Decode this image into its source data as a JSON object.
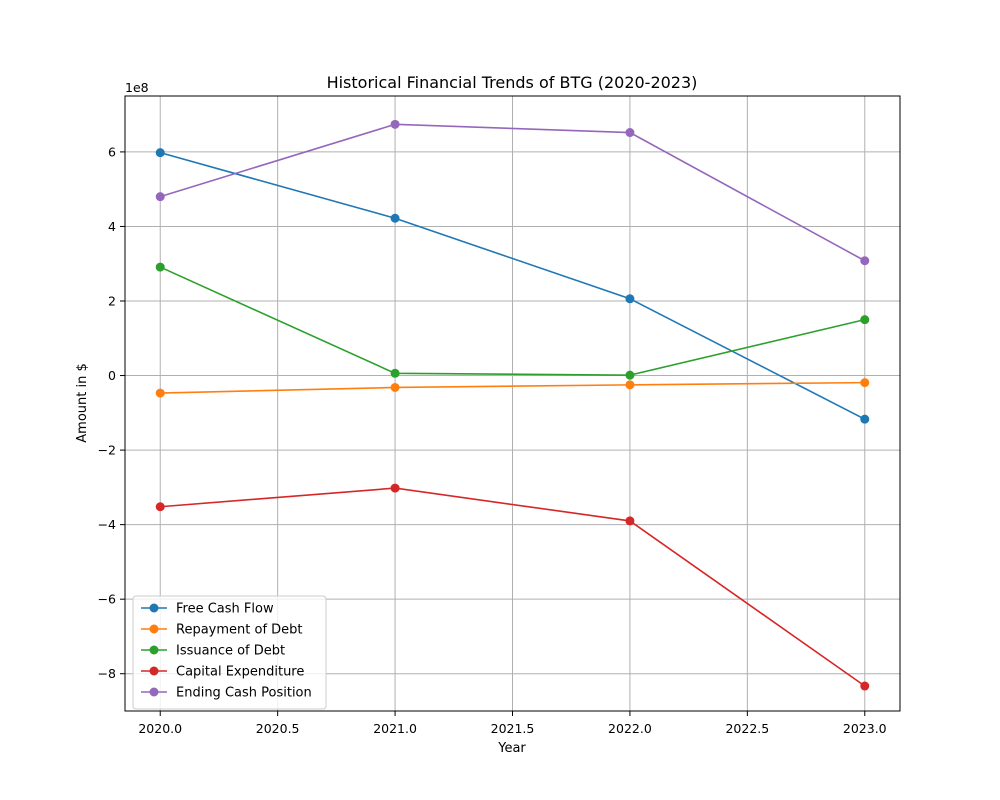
{
  "chart_data": {
    "type": "line",
    "title": "Historical Financial Trends of BTG (2020-2023)",
    "xlabel": "Year",
    "ylabel": "Amount in $",
    "offset_label": "1e8",
    "x": [
      2020,
      2021,
      2022,
      2023
    ],
    "xlim": [
      2019.85,
      2023.15
    ],
    "ylim": [
      -9.0,
      7.5
    ],
    "y_scale_note": "values in units of 1e8 $",
    "xticks": [
      2020.0,
      2020.5,
      2021.0,
      2021.5,
      2022.0,
      2022.5,
      2023.0
    ],
    "xtick_labels": [
      "2020.0",
      "2020.5",
      "2021.0",
      "2021.5",
      "2022.0",
      "2022.5",
      "2023.0"
    ],
    "yticks": [
      -8,
      -6,
      -4,
      -2,
      0,
      2,
      4,
      6
    ],
    "ytick_labels": [
      "−8",
      "−6",
      "−4",
      "−2",
      "0",
      "2",
      "4",
      "6"
    ],
    "grid": true,
    "legend_position": "lower-left",
    "series": [
      {
        "name": "Free Cash Flow",
        "color": "#1f77b4",
        "values": [
          5.98,
          4.22,
          2.06,
          -1.17
        ]
      },
      {
        "name": "Repayment of Debt",
        "color": "#ff7f0e",
        "values": [
          -0.47,
          -0.32,
          -0.25,
          -0.19
        ]
      },
      {
        "name": "Issuance of Debt",
        "color": "#2ca02c",
        "values": [
          2.91,
          0.06,
          0.01,
          1.5
        ]
      },
      {
        "name": "Capital Expenditure",
        "color": "#d62728",
        "values": [
          -3.52,
          -3.02,
          -3.9,
          -8.33
        ]
      },
      {
        "name": "Ending Cash Position",
        "color": "#9467bd",
        "values": [
          4.8,
          6.74,
          6.52,
          3.08
        ]
      }
    ]
  }
}
